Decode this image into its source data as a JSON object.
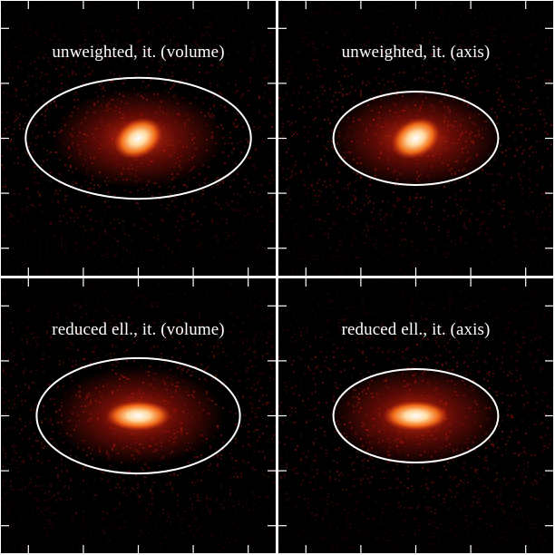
{
  "panels": [
    {
      "id": "tl",
      "title": "unweighted,  it. (volume)",
      "ellipse": {
        "rx_frac": 0.41,
        "ry_frac": 0.22,
        "tilt_deg": 0
      },
      "core": {
        "tilt_deg": -28,
        "aspect": 1.35
      }
    },
    {
      "id": "tr",
      "title": "unweighted,  it. (axis)",
      "ellipse": {
        "rx_frac": 0.3,
        "ry_frac": 0.17,
        "tilt_deg": 0
      },
      "core": {
        "tilt_deg": -28,
        "aspect": 1.35
      }
    },
    {
      "id": "bl",
      "title": "reduced ell.,  it. (volume)",
      "ellipse": {
        "rx_frac": 0.37,
        "ry_frac": 0.21,
        "tilt_deg": 0
      },
      "core": {
        "tilt_deg": 0,
        "aspect": 2.2
      }
    },
    {
      "id": "br",
      "title": "reduced ell.,  it. (axis)",
      "ellipse": {
        "rx_frac": 0.3,
        "ry_frac": 0.17,
        "tilt_deg": 0
      },
      "core": {
        "tilt_deg": 0,
        "aspect": 2.2
      }
    }
  ],
  "colors": {
    "background": "#000000",
    "noise": "#b0140a",
    "halo": "#e23a12",
    "core": "#ffffff",
    "ellipse": "#ffffff",
    "ticks": "#ffffff"
  }
}
